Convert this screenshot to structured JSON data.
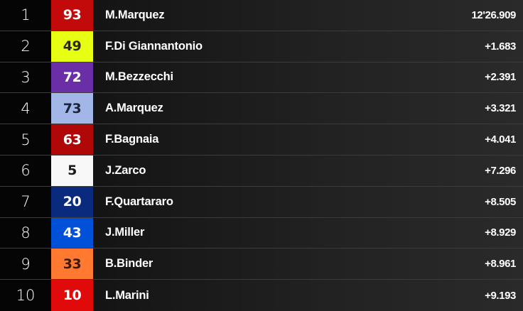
{
  "results": [
    {
      "pos": "1",
      "number": "93",
      "rider": "M.Marquez",
      "time": "12'26.909",
      "bg": "#c20a0a",
      "fg": "#ffffff"
    },
    {
      "pos": "2",
      "number": "49",
      "rider": "F.Di Giannantonio",
      "time": "+1.683",
      "bg": "#e6ff12",
      "fg": "#2a2a10"
    },
    {
      "pos": "3",
      "number": "72",
      "rider": "M.Bezzecchi",
      "time": "+2.391",
      "bg": "#6a2ea6",
      "fg": "#ffffff"
    },
    {
      "pos": "4",
      "number": "73",
      "rider": "A.Marquez",
      "time": "+3.321",
      "bg": "#a3b6e8",
      "fg": "#1a2438"
    },
    {
      "pos": "5",
      "number": "63",
      "rider": "F.Bagnaia",
      "time": "+4.041",
      "bg": "#b00808",
      "fg": "#ffffff"
    },
    {
      "pos": "6",
      "number": "5",
      "rider": "J.Zarco",
      "time": "+7.296",
      "bg": "#f8f8f8",
      "fg": "#1a1a1a"
    },
    {
      "pos": "7",
      "number": "20",
      "rider": "F.Quartararo",
      "time": "+8.505",
      "bg": "#0a2a7e",
      "fg": "#ffffff"
    },
    {
      "pos": "8",
      "number": "43",
      "rider": "J.Miller",
      "time": "+8.929",
      "bg": "#0050d8",
      "fg": "#ffffff"
    },
    {
      "pos": "9",
      "number": "33",
      "rider": "B.Binder",
      "time": "+8.961",
      "bg": "#ff7a30",
      "fg": "#3a1a08"
    },
    {
      "pos": "10",
      "number": "10",
      "rider": "L.Marini",
      "time": "+9.193",
      "bg": "#e00a0a",
      "fg": "#ffffff"
    }
  ]
}
